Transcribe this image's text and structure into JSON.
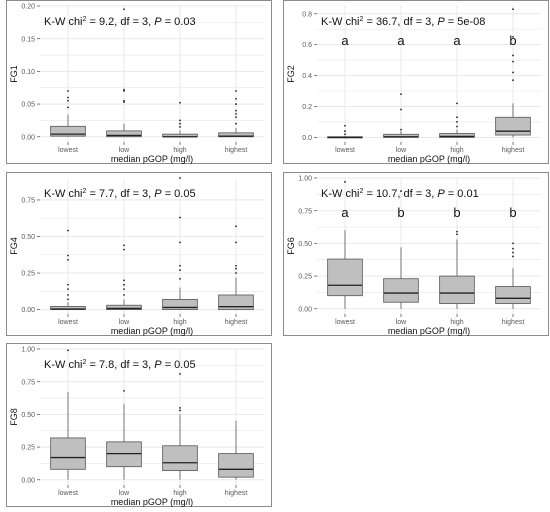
{
  "colors": {
    "box_fill": "#bfbfbf",
    "box_stroke": "#555555",
    "median": "#222222",
    "grid": "#e8e8e8",
    "panel_border": "#8c8c8c",
    "text": "#111111",
    "tick_text": "#5a5a5a"
  },
  "chart_data": [
    {
      "type": "boxplot",
      "panel": "FG1",
      "ylabel": "FG1",
      "xlabel": "median pGOP (mg/l)",
      "annotation": {
        "prefix": "K-W chi",
        "sup": "2",
        "mid": " = 9.2, df = 3, ",
        "p_label": "P",
        "p_value": " = 0.03"
      },
      "categories": [
        "lowest",
        "low",
        "high",
        "highest"
      ],
      "yticks": [
        "0.00",
        "0.05",
        "0.10",
        "0.15",
        "0.20"
      ],
      "ylim": [
        -0.008,
        0.2
      ],
      "grid": true,
      "letters": [],
      "boxes": [
        {
          "q1": 0.001,
          "median": 0.004,
          "q3": 0.016,
          "lower": 0.0,
          "upper": 0.034,
          "outliers": [
            0.045,
            0.055,
            0.06,
            0.07
          ]
        },
        {
          "q1": 0.0,
          "median": 0.002,
          "q3": 0.009,
          "lower": 0.0,
          "upper": 0.02,
          "outliers": [
            0.053,
            0.055,
            0.07,
            0.072,
            0.195
          ]
        },
        {
          "q1": 0.0,
          "median": 0.0,
          "q3": 0.004,
          "lower": 0.0,
          "upper": 0.01,
          "outliers": [
            0.015,
            0.02,
            0.025,
            0.052
          ]
        },
        {
          "q1": 0.0,
          "median": 0.001,
          "q3": 0.006,
          "lower": 0.0,
          "upper": 0.013,
          "outliers": [
            0.02,
            0.03,
            0.035,
            0.04,
            0.05,
            0.058,
            0.07
          ]
        }
      ]
    },
    {
      "type": "boxplot",
      "panel": "FG2",
      "ylabel": "FG2",
      "xlabel": "median pGOP (mg/l)",
      "annotation": {
        "prefix": "K-W chi",
        "sup": "2",
        "mid": " = 36.7, df = 3, ",
        "p_label": "P",
        "p_value": " = 5e-08"
      },
      "categories": [
        "lowest",
        "low",
        "high",
        "highest"
      ],
      "yticks": [
        "0.0",
        "0.2",
        "0.4",
        "0.6",
        "0.8"
      ],
      "ylim": [
        -0.03,
        0.85
      ],
      "grid": true,
      "letters": [
        "a",
        "a",
        "a",
        "b"
      ],
      "boxes": [
        {
          "q1": 0.0,
          "median": 0.0,
          "q3": 0.004,
          "lower": 0.0,
          "upper": 0.01,
          "outliers": [
            0.02,
            0.04,
            0.075
          ]
        },
        {
          "q1": 0.0,
          "median": 0.004,
          "q3": 0.02,
          "lower": 0.0,
          "upper": 0.04,
          "outliers": [
            0.05,
            0.18,
            0.28
          ]
        },
        {
          "q1": 0.0,
          "median": 0.006,
          "q3": 0.025,
          "lower": 0.0,
          "upper": 0.05,
          "outliers": [
            0.07,
            0.1,
            0.13,
            0.22
          ]
        },
        {
          "q1": 0.015,
          "median": 0.04,
          "q3": 0.13,
          "lower": 0.0,
          "upper": 0.22,
          "outliers": [
            0.37,
            0.42,
            0.49,
            0.53,
            0.65,
            0.83
          ]
        }
      ]
    },
    {
      "type": "boxplot",
      "panel": "FG4",
      "ylabel": "FG4",
      "xlabel": "median pGOP (mg/l)",
      "annotation": {
        "prefix": "K-W chi",
        "sup": "2",
        "mid": " = 7.7, df = 3, ",
        "p_label": "P",
        "p_value": " = 0.05"
      },
      "categories": [
        "lowest",
        "low",
        "high",
        "highest"
      ],
      "yticks": [
        "0.00",
        "0.25",
        "0.50",
        "0.75"
      ],
      "ylim": [
        -0.03,
        0.9
      ],
      "grid": true,
      "letters": [],
      "boxes": [
        {
          "q1": 0.0,
          "median": 0.004,
          "q3": 0.022,
          "lower": 0.0,
          "upper": 0.05,
          "outliers": [
            0.07,
            0.1,
            0.14,
            0.17,
            0.34,
            0.37,
            0.54
          ]
        },
        {
          "q1": 0.0,
          "median": 0.008,
          "q3": 0.03,
          "lower": 0.0,
          "upper": 0.07,
          "outliers": [
            0.1,
            0.14,
            0.17,
            0.2,
            0.41,
            0.44
          ]
        },
        {
          "q1": 0.0,
          "median": 0.015,
          "q3": 0.07,
          "lower": 0.0,
          "upper": 0.15,
          "outliers": [
            0.21,
            0.27,
            0.3,
            0.46,
            0.63,
            0.9
          ]
        },
        {
          "q1": 0.0,
          "median": 0.02,
          "q3": 0.1,
          "lower": 0.0,
          "upper": 0.22,
          "outliers": [
            0.25,
            0.28,
            0.3,
            0.46,
            0.57
          ]
        }
      ]
    },
    {
      "type": "boxplot",
      "panel": "FG6",
      "ylabel": "FG6",
      "xlabel": "median pGOP (mg/l)",
      "annotation": {
        "prefix": "K-W chi",
        "sup": "2",
        "mid": " = 10.7, df = 3, ",
        "p_label": "P",
        "p_value": " = 0.01"
      },
      "categories": [
        "lowest",
        "low",
        "high",
        "highest"
      ],
      "yticks": [
        "0.00",
        "0.25",
        "0.50",
        "0.75",
        "1.00"
      ],
      "ylim": [
        -0.04,
        1.0
      ],
      "grid": true,
      "letters": [
        "a",
        "b",
        "b",
        "b"
      ],
      "boxes": [
        {
          "q1": 0.1,
          "median": 0.18,
          "q3": 0.38,
          "lower": 0.0,
          "upper": 0.6,
          "outliers": [
            0.97
          ]
        },
        {
          "q1": 0.05,
          "median": 0.12,
          "q3": 0.23,
          "lower": 0.0,
          "upper": 0.47,
          "outliers": [
            0.9
          ]
        },
        {
          "q1": 0.04,
          "median": 0.12,
          "q3": 0.25,
          "lower": 0.0,
          "upper": 0.53,
          "outliers": [
            0.57,
            0.59
          ]
        },
        {
          "q1": 0.04,
          "median": 0.08,
          "q3": 0.17,
          "lower": 0.0,
          "upper": 0.31,
          "outliers": [
            0.4,
            0.43,
            0.46,
            0.5
          ]
        }
      ]
    },
    {
      "type": "boxplot",
      "panel": "FG8",
      "ylabel": "FG8",
      "xlabel": "median pGOP (mg/l)",
      "annotation": {
        "prefix": "K-W chi",
        "sup": "2",
        "mid": " = 7.8, df = 3, ",
        "p_label": "P",
        "p_value": " = 0.05"
      },
      "categories": [
        "lowest",
        "low",
        "high",
        "highest"
      ],
      "yticks": [
        "0.00",
        "0.25",
        "0.50",
        "0.75",
        "1.00"
      ],
      "ylim": [
        -0.04,
        1.0
      ],
      "grid": true,
      "letters": [],
      "boxes": [
        {
          "q1": 0.08,
          "median": 0.17,
          "q3": 0.32,
          "lower": 0.0,
          "upper": 0.67,
          "outliers": [
            0.99
          ]
        },
        {
          "q1": 0.1,
          "median": 0.2,
          "q3": 0.29,
          "lower": 0.0,
          "upper": 0.58,
          "outliers": [
            0.68
          ]
        },
        {
          "q1": 0.07,
          "median": 0.13,
          "q3": 0.26,
          "lower": 0.0,
          "upper": 0.5,
          "outliers": [
            0.53,
            0.55,
            0.81
          ]
        },
        {
          "q1": 0.02,
          "median": 0.08,
          "q3": 0.2,
          "lower": 0.0,
          "upper": 0.45,
          "outliers": []
        }
      ]
    }
  ]
}
